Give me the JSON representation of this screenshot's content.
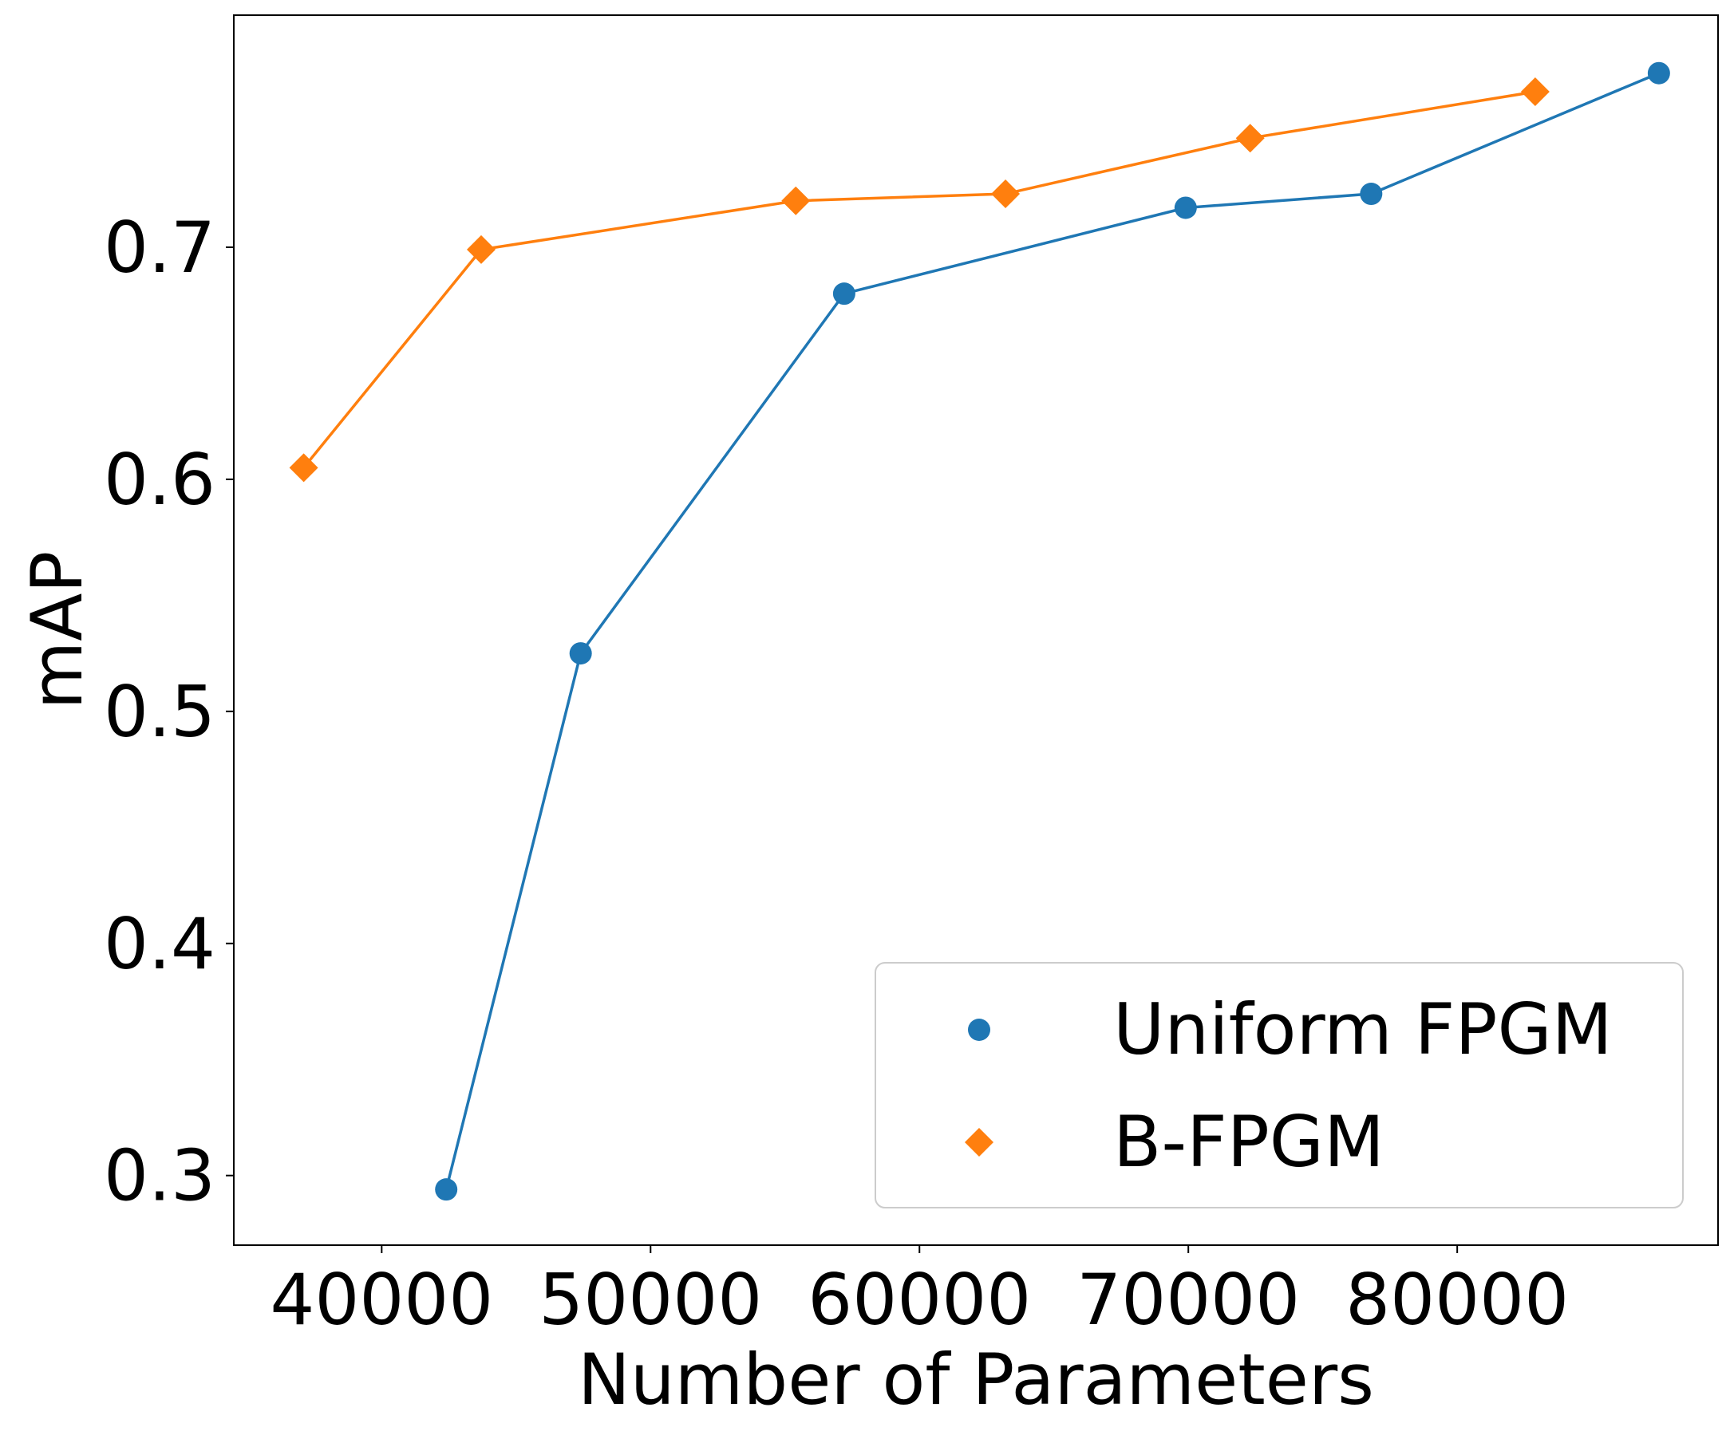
{
  "chart_data": {
    "type": "line",
    "xlabel": "Number of Parameters",
    "ylabel": "mAP",
    "xlim": [
      34500,
      89700
    ],
    "ylim": [
      0.27,
      0.8
    ],
    "x_ticks": [
      40000,
      50000,
      60000,
      70000,
      80000
    ],
    "y_ticks": [
      0.3,
      0.4,
      0.5,
      0.6,
      0.7
    ],
    "x_tick_labels": [
      "40000",
      "50000",
      "60000",
      "70000",
      "80000"
    ],
    "y_tick_labels": [
      "0.3",
      "0.4",
      "0.5",
      "0.6",
      "0.7"
    ],
    "grid": false,
    "legend_position": "lower-right",
    "series": [
      {
        "name": "Uniform FPGM",
        "marker": "circle",
        "color": "#1f77b4",
        "x": [
          42400,
          47400,
          57200,
          69900,
          76800,
          87500
        ],
        "y": [
          0.294,
          0.525,
          0.68,
          0.717,
          0.723,
          0.775
        ]
      },
      {
        "name": "B-FPGM",
        "marker": "diamond",
        "color": "#ff7f0e",
        "x": [
          37100,
          43700,
          55400,
          63200,
          72300,
          82900
        ],
        "y": [
          0.605,
          0.699,
          0.72,
          0.723,
          0.747,
          0.767
        ]
      }
    ]
  }
}
